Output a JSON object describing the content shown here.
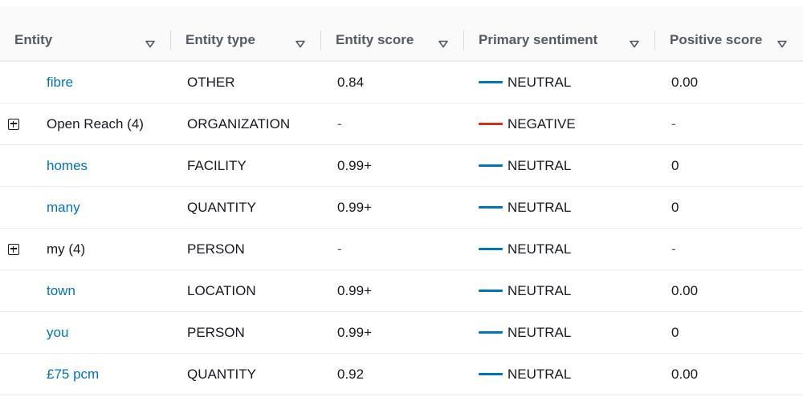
{
  "table": {
    "columns": [
      {
        "label": "Entity"
      },
      {
        "label": "Entity type"
      },
      {
        "label": "Entity score"
      },
      {
        "label": "Primary sentiment"
      },
      {
        "label": "Positive score"
      }
    ],
    "rows": [
      {
        "entity": "fibre",
        "expandable": false,
        "entity_type": "OTHER",
        "entity_score": "0.84",
        "sentiment": "NEUTRAL",
        "sentiment_color": "#0073bb",
        "positive_score": "0.00"
      },
      {
        "entity": "Open Reach (4)",
        "expandable": true,
        "entity_type": "ORGANIZATION",
        "entity_score": "-",
        "sentiment": "NEGATIVE",
        "sentiment_color": "#d13212",
        "positive_score": "-"
      },
      {
        "entity": "homes",
        "expandable": false,
        "entity_type": "FACILITY",
        "entity_score": "0.99+",
        "sentiment": "NEUTRAL",
        "sentiment_color": "#0073bb",
        "positive_score": "0"
      },
      {
        "entity": "many",
        "expandable": false,
        "entity_type": "QUANTITY",
        "entity_score": "0.99+",
        "sentiment": "NEUTRAL",
        "sentiment_color": "#0073bb",
        "positive_score": "0"
      },
      {
        "entity": "my (4)",
        "expandable": true,
        "entity_type": "PERSON",
        "entity_score": "-",
        "sentiment": "NEUTRAL",
        "sentiment_color": "#0073bb",
        "positive_score": "-"
      },
      {
        "entity": "town",
        "expandable": false,
        "entity_type": "LOCATION",
        "entity_score": "0.99+",
        "sentiment": "NEUTRAL",
        "sentiment_color": "#0073bb",
        "positive_score": "0.00"
      },
      {
        "entity": "you",
        "expandable": false,
        "entity_type": "PERSON",
        "entity_score": "0.99+",
        "sentiment": "NEUTRAL",
        "sentiment_color": "#0073bb",
        "positive_score": "0"
      },
      {
        "entity": "£75 pcm",
        "expandable": false,
        "entity_type": "QUANTITY",
        "entity_score": "0.92",
        "sentiment": "NEUTRAL",
        "sentiment_color": "#0073bb",
        "positive_score": "0.00"
      }
    ]
  },
  "icons": {
    "sort": "sort-triangle-down-icon",
    "expand": "expand-plus-square-icon",
    "sentiment_marker": "sentiment-line-icon"
  }
}
